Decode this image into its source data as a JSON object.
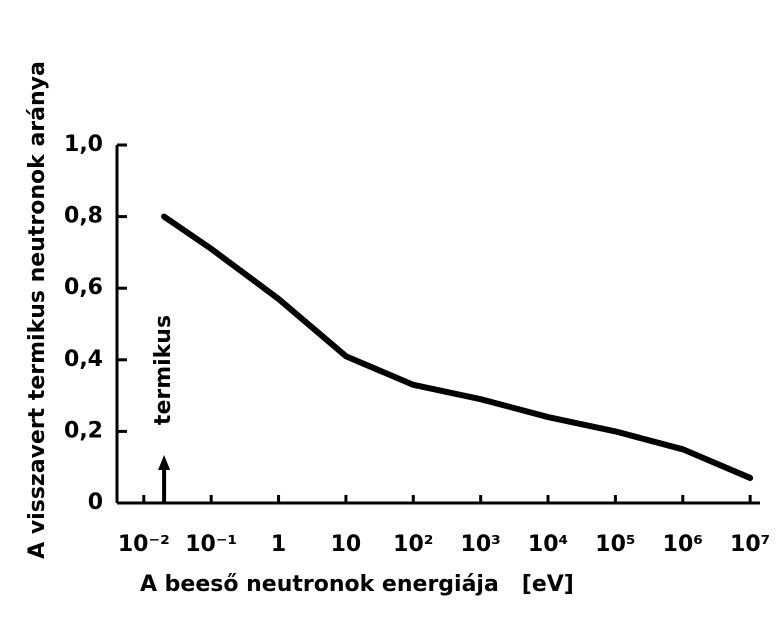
{
  "chart_data": {
    "type": "line",
    "xlabel": "A beeső neutronok energiája   [eV]",
    "ylabel": "A visszavert termikus neutronok aránya",
    "annotation": "termikus",
    "annotation_x": 0.02,
    "x": [
      0.02,
      0.1,
      1,
      10,
      100,
      1000,
      10000,
      100000,
      1000000,
      10000000
    ],
    "values": [
      0.8,
      0.71,
      0.57,
      0.41,
      0.33,
      0.29,
      0.24,
      0.2,
      0.15,
      0.07
    ],
    "color": "#000000",
    "xscale": "log",
    "xlim": [
      0.004,
      14000000
    ],
    "xticks": [
      {
        "value": 0.01,
        "label": "10⁻²"
      },
      {
        "value": 0.1,
        "label": "10⁻¹"
      },
      1,
      10,
      {
        "value": 100,
        "label": "10²"
      },
      {
        "value": 1000,
        "label": "10³"
      },
      {
        "value": 10000,
        "label": "10⁴"
      },
      {
        "value": 100000,
        "label": "10⁵"
      },
      {
        "value": 1000000,
        "label": "10⁶"
      },
      {
        "value": 10000000,
        "label": "10⁷"
      }
    ],
    "ylim": [
      0,
      1
    ],
    "yticks": [
      0,
      {
        "value": 0.2,
        "label": "0,2"
      },
      {
        "value": 0.4,
        "label": "0,4"
      },
      {
        "value": 0.6,
        "label": "0,6"
      },
      {
        "value": 0.8,
        "label": "0,8"
      },
      {
        "value": 1,
        "label": "1,0"
      }
    ],
    "grid": false
  }
}
